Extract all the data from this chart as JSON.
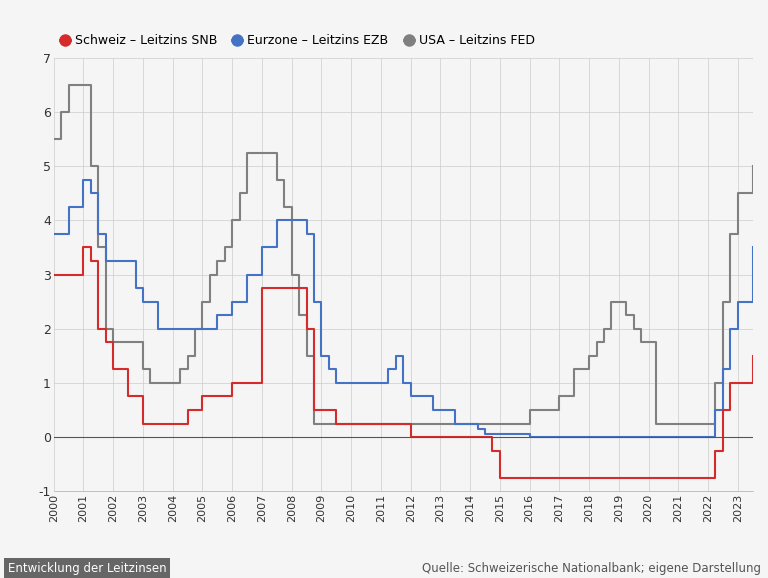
{
  "title": "",
  "xlabel": "",
  "ylabel": "",
  "ylim": [
    -1,
    7
  ],
  "xlim": [
    2000,
    2023.5
  ],
  "yticks": [
    -1,
    0,
    1,
    2,
    3,
    4,
    5,
    6,
    7
  ],
  "xticks": [
    2000,
    2001,
    2002,
    2003,
    2004,
    2005,
    2006,
    2007,
    2008,
    2009,
    2010,
    2011,
    2012,
    2013,
    2014,
    2015,
    2016,
    2017,
    2018,
    2019,
    2020,
    2021,
    2022,
    2023
  ],
  "background_color": "#f5f5f5",
  "grid_color": "#cccccc",
  "legend_labels": [
    "Schweiz – Leitzins SNB",
    "Eurzone – Leitzins EZB",
    "USA – Leitzins FED"
  ],
  "legend_colors": [
    "#d62b2b",
    "#4472c4",
    "#808080"
  ],
  "footer_left": "Entwicklung der Leitzinsen",
  "footer_right": "Quelle: Schweizerische Nationalbank; eigene Darstellung",
  "snb": {
    "dates": [
      2000.0,
      2001.0,
      2001.25,
      2001.5,
      2001.75,
      2002.0,
      2002.5,
      2003.0,
      2003.5,
      2004.0,
      2004.5,
      2005.0,
      2006.0,
      2007.0,
      2007.5,
      2008.0,
      2008.5,
      2008.75,
      2009.0,
      2009.5,
      2010.0,
      2011.0,
      2012.0,
      2013.0,
      2014.0,
      2014.5,
      2014.75,
      2015.0,
      2015.5,
      2016.0,
      2017.0,
      2018.0,
      2019.0,
      2020.0,
      2021.0,
      2022.0,
      2022.25,
      2022.5,
      2022.75,
      2023.0,
      2023.5
    ],
    "values": [
      3.0,
      3.5,
      3.25,
      2.0,
      1.75,
      1.25,
      0.75,
      0.25,
      0.25,
      0.25,
      0.5,
      0.75,
      1.0,
      2.75,
      2.75,
      2.75,
      2.0,
      0.5,
      0.5,
      0.25,
      0.25,
      0.25,
      0.0,
      0.0,
      0.0,
      0.0,
      -0.25,
      -0.75,
      -0.75,
      -0.75,
      -0.75,
      -0.75,
      -0.75,
      -0.75,
      -0.75,
      -0.75,
      -0.25,
      0.5,
      1.0,
      1.0,
      1.5
    ],
    "color": "#d62b2b"
  },
  "ezb": {
    "dates": [
      2000.0,
      2000.5,
      2001.0,
      2001.25,
      2001.5,
      2001.75,
      2002.0,
      2002.25,
      2002.75,
      2003.0,
      2003.5,
      2004.0,
      2005.0,
      2005.5,
      2006.0,
      2006.5,
      2007.0,
      2007.5,
      2008.0,
      2008.5,
      2008.75,
      2009.0,
      2009.25,
      2009.5,
      2010.0,
      2011.0,
      2011.25,
      2011.5,
      2011.75,
      2012.0,
      2012.25,
      2012.5,
      2012.75,
      2013.0,
      2013.5,
      2014.0,
      2014.25,
      2014.5,
      2014.75,
      2015.0,
      2016.0,
      2017.0,
      2018.0,
      2019.0,
      2020.0,
      2021.0,
      2022.0,
      2022.25,
      2022.5,
      2022.75,
      2023.0,
      2023.5
    ],
    "values": [
      3.75,
      4.25,
      4.75,
      4.5,
      3.75,
      3.25,
      3.25,
      3.25,
      2.75,
      2.5,
      2.0,
      2.0,
      2.0,
      2.25,
      2.5,
      3.0,
      3.5,
      4.0,
      4.0,
      3.75,
      2.5,
      1.5,
      1.25,
      1.0,
      1.0,
      1.0,
      1.25,
      1.5,
      1.0,
      0.75,
      0.75,
      0.75,
      0.5,
      0.5,
      0.25,
      0.25,
      0.15,
      0.05,
      0.05,
      0.05,
      0.0,
      0.0,
      0.0,
      0.0,
      0.0,
      0.0,
      0.0,
      0.5,
      1.25,
      2.0,
      2.5,
      3.5
    ],
    "color": "#4472c4"
  },
  "fed": {
    "dates": [
      2000.0,
      2000.25,
      2000.5,
      2000.75,
      2001.0,
      2001.25,
      2001.5,
      2001.75,
      2002.0,
      2003.0,
      2003.25,
      2003.5,
      2004.0,
      2004.25,
      2004.5,
      2004.75,
      2005.0,
      2005.25,
      2005.5,
      2005.75,
      2006.0,
      2006.25,
      2006.5,
      2007.0,
      2007.25,
      2007.5,
      2007.75,
      2008.0,
      2008.25,
      2008.5,
      2008.75,
      2009.0,
      2009.25,
      2009.5,
      2015.0,
      2015.25,
      2015.5,
      2016.0,
      2016.25,
      2016.5,
      2017.0,
      2017.5,
      2018.0,
      2018.25,
      2018.5,
      2018.75,
      2019.0,
      2019.25,
      2019.5,
      2019.75,
      2020.0,
      2020.25,
      2021.0,
      2022.0,
      2022.25,
      2022.5,
      2022.75,
      2023.0,
      2023.5
    ],
    "values": [
      5.5,
      6.0,
      6.5,
      6.5,
      6.5,
      5.0,
      3.5,
      2.0,
      1.75,
      1.25,
      1.0,
      1.0,
      1.0,
      1.25,
      1.5,
      2.0,
      2.5,
      3.0,
      3.25,
      3.5,
      4.0,
      4.5,
      5.25,
      5.25,
      5.25,
      4.75,
      4.25,
      3.0,
      2.25,
      1.5,
      0.25,
      0.25,
      0.25,
      0.25,
      0.25,
      0.25,
      0.25,
      0.5,
      0.5,
      0.5,
      0.75,
      1.25,
      1.5,
      1.75,
      2.0,
      2.5,
      2.5,
      2.25,
      2.0,
      1.75,
      1.75,
      0.25,
      0.25,
      0.25,
      1.0,
      2.5,
      3.75,
      4.5,
      5.0
    ],
    "color": "#808080"
  }
}
